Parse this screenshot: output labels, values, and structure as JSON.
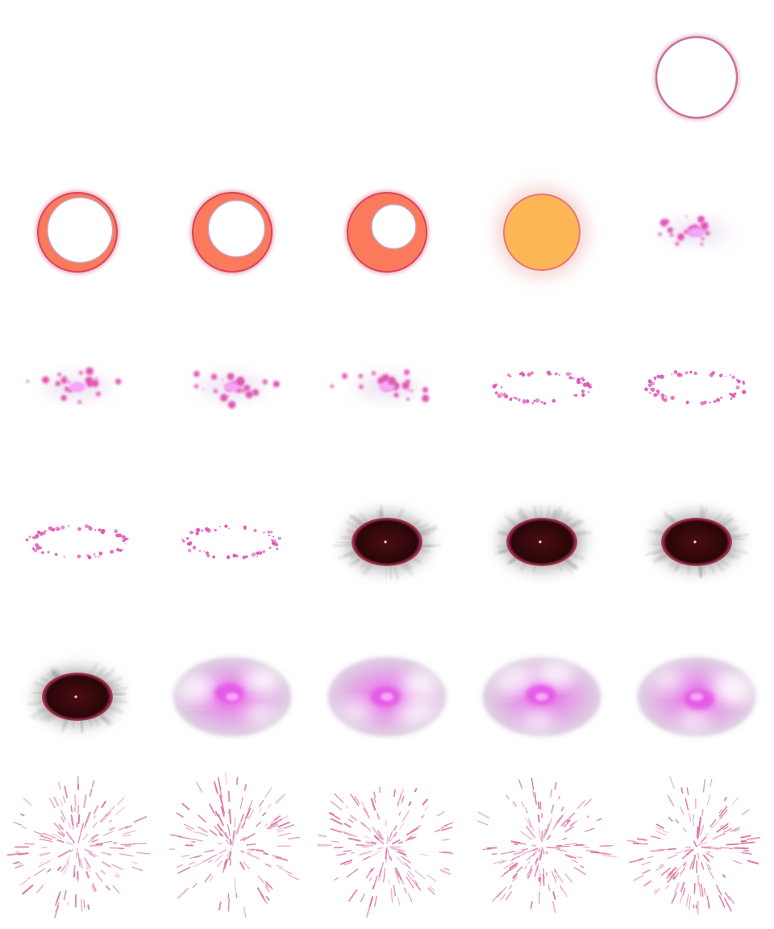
{
  "sprite_sheet": {
    "columns": 5,
    "rows": 6,
    "colors": {
      "ring_stroke": "#c9709c",
      "crescent_fill": "#fb7a5c",
      "crescent_rim": "#d8455f",
      "sun_fill": "#fdb655",
      "sun_rim": "#e5787a",
      "spark_pink": "#e054b4",
      "spark_core": "#f6a6f8",
      "void_fill": "#2a0608",
      "void_rim": "#c6406a",
      "nebula_magenta": "#e65ae8",
      "streak_pink": "#d9739e"
    },
    "frames": [
      {
        "kind": "empty"
      },
      {
        "kind": "empty"
      },
      {
        "kind": "empty"
      },
      {
        "kind": "empty"
      },
      {
        "kind": "ring"
      },
      {
        "kind": "crescent",
        "phase": 0.12
      },
      {
        "kind": "crescent",
        "phase": 0.3
      },
      {
        "kind": "crescent",
        "phase": 0.55
      },
      {
        "kind": "sun"
      },
      {
        "kind": "cluster",
        "seed": 11
      },
      {
        "kind": "cluster",
        "seed": 23
      },
      {
        "kind": "cluster",
        "seed": 37
      },
      {
        "kind": "cluster",
        "seed": 51
      },
      {
        "kind": "dotring",
        "seed": 61
      },
      {
        "kind": "dotring",
        "seed": 73
      },
      {
        "kind": "dotring",
        "seed": 87
      },
      {
        "kind": "dotring",
        "seed": 97
      },
      {
        "kind": "void",
        "seed": 3
      },
      {
        "kind": "void",
        "seed": 5
      },
      {
        "kind": "void",
        "seed": 7
      },
      {
        "kind": "void",
        "seed": 9
      },
      {
        "kind": "nebula",
        "seed": 13
      },
      {
        "kind": "nebula",
        "seed": 17
      },
      {
        "kind": "nebula",
        "seed": 19
      },
      {
        "kind": "nebula",
        "seed": 29
      },
      {
        "kind": "streaks",
        "seed": 31
      },
      {
        "kind": "streaks",
        "seed": 41
      },
      {
        "kind": "streaks",
        "seed": 43
      },
      {
        "kind": "streaks",
        "seed": 47
      },
      {
        "kind": "streaks",
        "seed": 53
      }
    ]
  }
}
